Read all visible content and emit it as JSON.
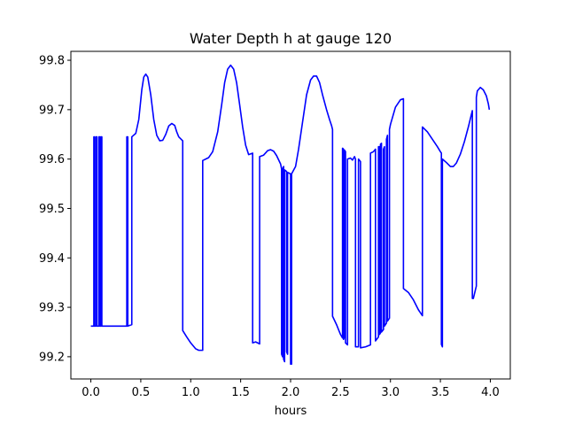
{
  "chart_data": {
    "type": "line",
    "title": "Water Depth h at gauge 120",
    "xlabel": "hours",
    "ylabel": "",
    "xlim": [
      -0.2,
      4.2
    ],
    "ylim": [
      99.155,
      99.818
    ],
    "grid": false,
    "x_ticks": [
      0.0,
      0.5,
      1.0,
      1.5,
      2.0,
      2.5,
      3.0,
      3.5,
      4.0
    ],
    "x_tick_labels": [
      "0.0",
      "0.5",
      "1.0",
      "1.5",
      "2.0",
      "2.5",
      "3.0",
      "3.5",
      "4.0"
    ],
    "y_ticks": [
      99.2,
      99.3,
      99.4,
      99.5,
      99.6,
      99.7,
      99.8
    ],
    "y_tick_labels": [
      "99.2",
      "99.3",
      "99.4",
      "99.5",
      "99.6",
      "99.7",
      "99.8"
    ],
    "series": [
      {
        "name": "",
        "color": "#0000ff",
        "points": [
          [
            0.0,
            99.262
          ],
          [
            0.03,
            99.262
          ],
          [
            0.03,
            99.645
          ],
          [
            0.035,
            99.645
          ],
          [
            0.035,
            99.262
          ],
          [
            0.05,
            99.262
          ],
          [
            0.05,
            99.645
          ],
          [
            0.06,
            99.645
          ],
          [
            0.06,
            99.262
          ],
          [
            0.08,
            99.262
          ],
          [
            0.08,
            99.645
          ],
          [
            0.09,
            99.645
          ],
          [
            0.09,
            99.262
          ],
          [
            0.1,
            99.262
          ],
          [
            0.1,
            99.645
          ],
          [
            0.11,
            99.645
          ],
          [
            0.11,
            99.262
          ],
          [
            0.2,
            99.262
          ],
          [
            0.3,
            99.262
          ],
          [
            0.36,
            99.262
          ],
          [
            0.36,
            99.645
          ],
          [
            0.37,
            99.645
          ],
          [
            0.37,
            99.262
          ],
          [
            0.41,
            99.265
          ],
          [
            0.41,
            99.645
          ],
          [
            0.45,
            99.652
          ],
          [
            0.48,
            99.68
          ],
          [
            0.51,
            99.74
          ],
          [
            0.53,
            99.766
          ],
          [
            0.55,
            99.772
          ],
          [
            0.57,
            99.766
          ],
          [
            0.6,
            99.73
          ],
          [
            0.63,
            99.68
          ],
          [
            0.66,
            99.648
          ],
          [
            0.69,
            99.637
          ],
          [
            0.72,
            99.638
          ],
          [
            0.75,
            99.65
          ],
          [
            0.78,
            99.667
          ],
          [
            0.81,
            99.672
          ],
          [
            0.84,
            99.668
          ],
          [
            0.86,
            99.655
          ],
          [
            0.88,
            99.645
          ],
          [
            0.92,
            99.637
          ],
          [
            0.92,
            99.253
          ],
          [
            0.96,
            99.24
          ],
          [
            1.0,
            99.228
          ],
          [
            1.05,
            99.216
          ],
          [
            1.08,
            99.213
          ],
          [
            1.12,
            99.213
          ],
          [
            1.12,
            99.597
          ],
          [
            1.18,
            99.603
          ],
          [
            1.22,
            99.615
          ],
          [
            1.27,
            99.655
          ],
          [
            1.31,
            99.71
          ],
          [
            1.34,
            99.755
          ],
          [
            1.37,
            99.782
          ],
          [
            1.4,
            99.79
          ],
          [
            1.43,
            99.782
          ],
          [
            1.46,
            99.754
          ],
          [
            1.49,
            99.71
          ],
          [
            1.52,
            99.665
          ],
          [
            1.55,
            99.628
          ],
          [
            1.58,
            99.609
          ],
          [
            1.62,
            99.612
          ],
          [
            1.62,
            99.228
          ],
          [
            1.65,
            99.23
          ],
          [
            1.69,
            99.226
          ],
          [
            1.69,
            99.605
          ],
          [
            1.73,
            99.608
          ],
          [
            1.77,
            99.617
          ],
          [
            1.8,
            99.619
          ],
          [
            1.83,
            99.616
          ],
          [
            1.86,
            99.607
          ],
          [
            1.9,
            99.59
          ],
          [
            1.91,
            99.58
          ],
          [
            1.91,
            99.205
          ],
          [
            1.92,
            99.2
          ],
          [
            1.92,
            99.58
          ],
          [
            1.93,
            99.585
          ],
          [
            1.93,
            99.195
          ],
          [
            1.94,
            99.19
          ],
          [
            1.94,
            99.578
          ],
          [
            1.96,
            99.575
          ],
          [
            1.96,
            99.21
          ],
          [
            1.97,
            99.205
          ],
          [
            1.97,
            99.573
          ],
          [
            2.0,
            99.57
          ],
          [
            2.0,
            99.185
          ],
          [
            2.01,
            99.185
          ],
          [
            2.01,
            99.57
          ],
          [
            2.05,
            99.585
          ],
          [
            2.08,
            99.62
          ],
          [
            2.12,
            99.675
          ],
          [
            2.16,
            99.73
          ],
          [
            2.2,
            99.76
          ],
          [
            2.23,
            99.768
          ],
          [
            2.26,
            99.768
          ],
          [
            2.29,
            99.755
          ],
          [
            2.32,
            99.73
          ],
          [
            2.36,
            99.7
          ],
          [
            2.39,
            99.68
          ],
          [
            2.41,
            99.668
          ],
          [
            2.42,
            99.66
          ],
          [
            2.42,
            99.282
          ],
          [
            2.46,
            99.265
          ],
          [
            2.5,
            99.245
          ],
          [
            2.52,
            99.238
          ],
          [
            2.52,
            99.622
          ],
          [
            2.53,
            99.62
          ],
          [
            2.53,
            99.235
          ],
          [
            2.54,
            99.24
          ],
          [
            2.54,
            99.618
          ],
          [
            2.55,
            99.615
          ],
          [
            2.55,
            99.228
          ],
          [
            2.57,
            99.224
          ],
          [
            2.57,
            99.6
          ],
          [
            2.6,
            99.602
          ],
          [
            2.62,
            99.598
          ],
          [
            2.64,
            99.605
          ],
          [
            2.65,
            99.6
          ],
          [
            2.65,
            99.22
          ],
          [
            2.68,
            99.22
          ],
          [
            2.68,
            99.6
          ],
          [
            2.7,
            99.595
          ],
          [
            2.7,
            99.218
          ],
          [
            2.75,
            99.22
          ],
          [
            2.8,
            99.224
          ],
          [
            2.8,
            99.612
          ],
          [
            2.83,
            99.615
          ],
          [
            2.85,
            99.62
          ],
          [
            2.85,
            99.232
          ],
          [
            2.88,
            99.24
          ],
          [
            2.88,
            99.625
          ],
          [
            2.89,
            99.625
          ],
          [
            2.89,
            99.245
          ],
          [
            2.9,
            99.248
          ],
          [
            2.9,
            99.63
          ],
          [
            2.91,
            99.632
          ],
          [
            2.91,
            99.25
          ],
          [
            2.93,
            99.255
          ],
          [
            2.93,
            99.62
          ],
          [
            2.94,
            99.625
          ],
          [
            2.94,
            99.262
          ],
          [
            2.96,
            99.268
          ],
          [
            2.96,
            99.64
          ],
          [
            2.97,
            99.648
          ],
          [
            2.97,
            99.272
          ],
          [
            2.99,
            99.278
          ],
          [
            2.99,
            99.66
          ],
          [
            3.0,
            99.67
          ],
          [
            3.05,
            99.705
          ],
          [
            3.1,
            99.72
          ],
          [
            3.13,
            99.722
          ],
          [
            3.13,
            99.338
          ],
          [
            3.18,
            99.33
          ],
          [
            3.23,
            99.315
          ],
          [
            3.28,
            99.295
          ],
          [
            3.32,
            99.283
          ],
          [
            3.32,
            99.665
          ],
          [
            3.37,
            99.655
          ],
          [
            3.42,
            99.64
          ],
          [
            3.47,
            99.625
          ],
          [
            3.5,
            99.615
          ],
          [
            3.51,
            99.612
          ],
          [
            3.51,
            99.225
          ],
          [
            3.52,
            99.22
          ],
          [
            3.52,
            99.6
          ],
          [
            3.56,
            99.593
          ],
          [
            3.6,
            99.585
          ],
          [
            3.63,
            99.585
          ],
          [
            3.66,
            99.592
          ],
          [
            3.7,
            99.61
          ],
          [
            3.74,
            99.635
          ],
          [
            3.78,
            99.665
          ],
          [
            3.81,
            99.69
          ],
          [
            3.82,
            99.698
          ],
          [
            3.82,
            99.318
          ],
          [
            3.83,
            99.318
          ],
          [
            3.86,
            99.343
          ],
          [
            3.86,
            99.352
          ],
          [
            3.86,
            99.725
          ],
          [
            3.87,
            99.738
          ],
          [
            3.9,
            99.745
          ],
          [
            3.93,
            99.74
          ],
          [
            3.96,
            99.728
          ],
          [
            3.98,
            99.712
          ],
          [
            3.99,
            99.7
          ]
        ]
      }
    ]
  }
}
